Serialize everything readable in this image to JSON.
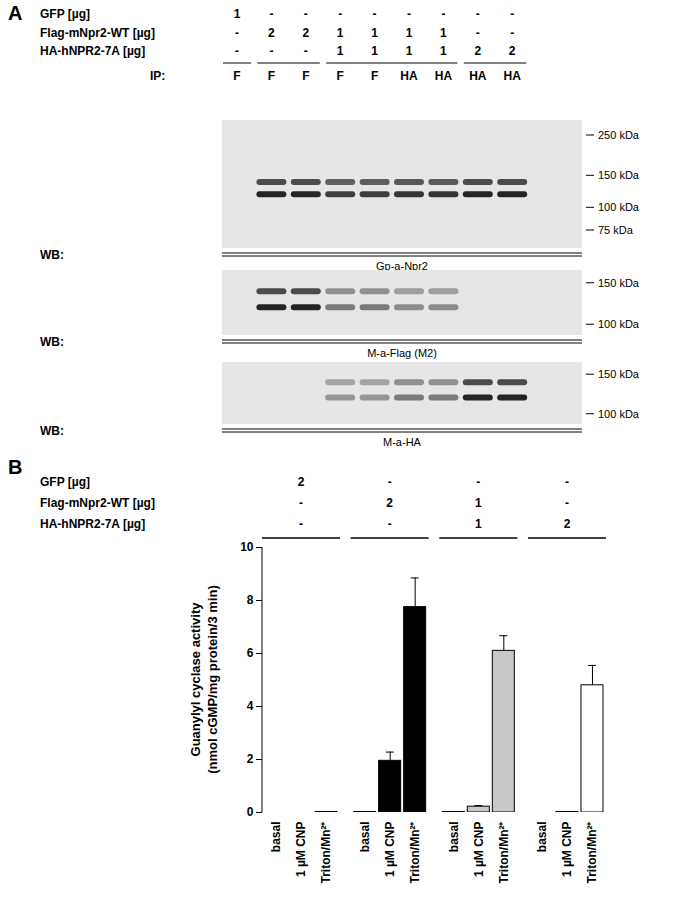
{
  "panel_a": {
    "label": "A",
    "rows": [
      {
        "label": "GFP [µg]",
        "values": [
          1,
          "-",
          "-",
          "-",
          "-",
          "-",
          "-",
          "-",
          "-"
        ]
      },
      {
        "label": "Flag-mNpr2-WT [µg]",
        "values": [
          "-",
          2,
          2,
          1,
          1,
          1,
          1,
          "-",
          "-"
        ]
      },
      {
        "label": "HA-hNPR2-7A [µg]",
        "values": [
          "-",
          "-",
          "-",
          1,
          1,
          1,
          1,
          2,
          2
        ]
      }
    ],
    "ip": {
      "label": "IP:",
      "lanes": [
        "F",
        "F",
        "F",
        "F",
        "F",
        "HA",
        "HA",
        "HA",
        "HA"
      ],
      "lane_groups": [
        1,
        2,
        4,
        2
      ]
    },
    "blots": [
      {
        "wb_label": "WB:",
        "antibody": "Gp-a-Npr2",
        "markers": [
          {
            "value": 250,
            "label": "250 kDa"
          },
          {
            "value": 150,
            "label": "150 kDa"
          },
          {
            "value": 100,
            "label": "100 kDa"
          },
          {
            "value": 75,
            "label": "75 kDa"
          }
        ]
      },
      {
        "wb_label": "WB:",
        "antibody": "M-a-Flag (M2)",
        "markers": [
          {
            "value": 150,
            "label": "150 kDa"
          },
          {
            "value": 100,
            "label": "100 kDa"
          }
        ]
      },
      {
        "wb_label": "WB:",
        "antibody": "M-a-HA",
        "markers": [
          {
            "value": 150,
            "label": "150 kDa"
          },
          {
            "value": 100,
            "label": "100 kDa"
          }
        ]
      }
    ]
  },
  "panel_b": {
    "label": "B",
    "rows": [
      {
        "label": "GFP [µg]",
        "values": [
          2,
          "-",
          "-",
          "-"
        ]
      },
      {
        "label": "Flag-mNpr2-WT [µg]",
        "values": [
          "-",
          2,
          1,
          "-"
        ]
      },
      {
        "label": "HA-hNPR2-7A [µg]",
        "values": [
          "-",
          "-",
          1,
          2
        ]
      }
    ]
  },
  "chart_data": {
    "type": "bar",
    "categories": [
      "basal",
      "1 µM CNP",
      "Triton/Mn²⁺"
    ],
    "series": [
      {
        "color": "#ffffff",
        "values": [
          0,
          0,
          0.02
        ],
        "errors": [
          0,
          0,
          0
        ]
      },
      {
        "color": "#000000",
        "values": [
          0.02,
          1.95,
          7.75
        ],
        "errors": [
          0,
          0.33,
          1.1
        ]
      },
      {
        "color": "#c8c8c8",
        "values": [
          0.02,
          0.22,
          6.1
        ],
        "errors": [
          0,
          0.04,
          0.57
        ]
      },
      {
        "color": "#ffffff",
        "values": [
          0,
          0.02,
          4.8
        ],
        "errors": [
          0,
          0,
          0.75
        ]
      }
    ],
    "ylim": [
      0,
      10
    ],
    "yticks": [
      0,
      2,
      4,
      6,
      8,
      10
    ],
    "y_label": [
      "Guanylyl cyclase activity",
      "(nmol cGMP/mg protein/3 min)"
    ]
  }
}
